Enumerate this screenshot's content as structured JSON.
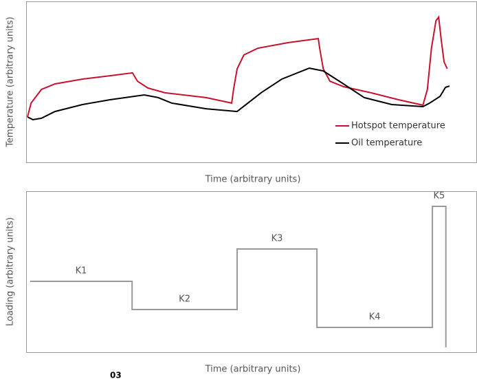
{
  "chart_data": [
    {
      "type": "line",
      "y_label": "Temperature (arbitrary units)",
      "x_label": "Time (arbitrary units)",
      "xlim": [
        0,
        100
      ],
      "ylim": [
        0,
        100
      ],
      "legend": "lower right",
      "series": [
        {
          "name": "Hotspot temperature",
          "color": "#c8102e",
          "x": [
            0.3,
            1.1,
            3.4,
            6.4,
            12.5,
            18.6,
            23.6,
            24.7,
            27.0,
            30.8,
            39.9,
            45.6,
            46.0,
            46.8,
            48.3,
            51.4,
            58.2,
            64.8,
            65.1,
            65.9,
            67.4,
            70.4,
            76.5,
            82.6,
            88.0,
            89.0,
            89.9,
            90.9,
            91.5,
            92.1,
            92.7,
            93.4
          ],
          "values": [
            28.2,
            36.8,
            45.3,
            48.7,
            51.7,
            53.8,
            55.6,
            50.4,
            46.2,
            43.2,
            40.2,
            36.8,
            45.3,
            58.1,
            66.7,
            70.9,
            74.4,
            76.9,
            70.9,
            58.1,
            50.4,
            47.0,
            43.2,
            38.9,
            35.5,
            45.3,
            70.9,
            88.0,
            90.2,
            75.2,
            62.4,
            58.1
          ]
        },
        {
          "name": "Oil temperature",
          "color": "#000000",
          "x": [
            0.3,
            1.5,
            3.4,
            6.4,
            12.5,
            18.6,
            26.2,
            29.3,
            32.3,
            39.9,
            46.8,
            52.1,
            56.7,
            62.8,
            65.9,
            70.4,
            75.0,
            81.1,
            88.0,
            89.5,
            91.8,
            93.0,
            93.9
          ],
          "values": [
            28.2,
            26.5,
            27.4,
            31.6,
            35.9,
            38.9,
            41.9,
            40.2,
            36.8,
            33.3,
            31.6,
            43.2,
            51.7,
            58.5,
            56.8,
            48.7,
            40.2,
            35.9,
            34.6,
            36.8,
            41.0,
            46.6,
            47.4
          ]
        }
      ]
    },
    {
      "type": "step",
      "y_label": "Loading (arbitrary units)",
      "x_label": "Time (arbitrary units)",
      "xlim": [
        0,
        100
      ],
      "ylim": [
        0,
        100
      ],
      "color": "#999999",
      "x": [
        0.9,
        23.5,
        23.5,
        46.8,
        46.8,
        64.5,
        64.5,
        90.1,
        90.1,
        93.1,
        93.1
      ],
      "values": [
        44.0,
        44.0,
        26.5,
        26.5,
        64.1,
        64.1,
        15.4,
        15.4,
        90.6,
        90.6,
        3.0
      ],
      "annotations": [
        "K1",
        "K2",
        "K3",
        "K4",
        "K5"
      ]
    }
  ],
  "figure_number": "03"
}
